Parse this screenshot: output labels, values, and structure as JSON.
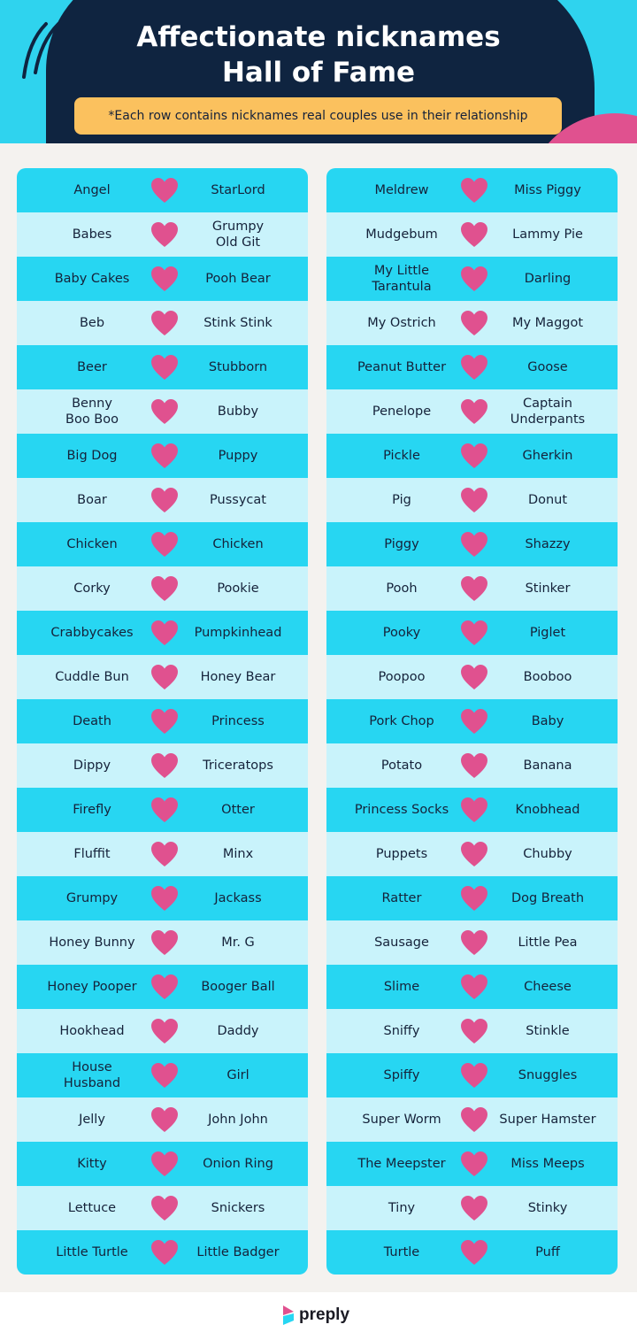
{
  "header": {
    "title_line1": "Affectionate nicknames",
    "title_line2": "Hall of Fame",
    "note": "*Each row contains nicknames real couples use in their relationship"
  },
  "colors": {
    "cyan": "#27d6f2",
    "light_cyan": "#c9f3fb",
    "navy": "#0f2440",
    "pink": "#e0518f",
    "yellow": "#fbc15e"
  },
  "icons": {
    "row_separator": "heart-icon"
  },
  "left_column": [
    [
      "Angel",
      "StarLord"
    ],
    [
      "Babes",
      "Grumpy\nOld Git"
    ],
    [
      "Baby Cakes",
      "Pooh Bear"
    ],
    [
      "Beb",
      "Stink Stink"
    ],
    [
      "Beer",
      "Stubborn"
    ],
    [
      "Benny\nBoo Boo",
      "Bubby"
    ],
    [
      "Big Dog",
      "Puppy"
    ],
    [
      "Boar",
      "Pussycat"
    ],
    [
      "Chicken",
      "Chicken"
    ],
    [
      "Corky",
      "Pookie"
    ],
    [
      "Crabbycakes",
      "Pumpkinhead"
    ],
    [
      "Cuddle Bun",
      "Honey Bear"
    ],
    [
      "Death",
      "Princess"
    ],
    [
      "Dippy",
      "Triceratops"
    ],
    [
      "Firefly",
      "Otter"
    ],
    [
      "Fluffit",
      "Minx"
    ],
    [
      "Grumpy",
      "Jackass"
    ],
    [
      "Honey Bunny",
      "Mr. G"
    ],
    [
      "Honey Pooper",
      "Booger Ball"
    ],
    [
      "Hookhead",
      "Daddy"
    ],
    [
      "House\nHusband",
      "Girl"
    ],
    [
      "Jelly",
      "John John"
    ],
    [
      "Kitty",
      "Onion Ring"
    ],
    [
      "Lettuce",
      "Snickers"
    ],
    [
      "Little Turtle",
      "Little Badger"
    ]
  ],
  "right_column": [
    [
      "Meldrew",
      "Miss Piggy"
    ],
    [
      "Mudgebum",
      "Lammy Pie"
    ],
    [
      "My Little\nTarantula",
      "Darling"
    ],
    [
      "My Ostrich",
      "My Maggot"
    ],
    [
      "Peanut Butter",
      "Goose"
    ],
    [
      "Penelope",
      "Captain\nUnderpants"
    ],
    [
      "Pickle",
      "Gherkin"
    ],
    [
      "Pig",
      "Donut"
    ],
    [
      "Piggy",
      "Shazzy"
    ],
    [
      "Pooh",
      "Stinker"
    ],
    [
      "Pooky",
      "Piglet"
    ],
    [
      "Poopoo",
      "Booboo"
    ],
    [
      "Pork Chop",
      "Baby"
    ],
    [
      "Potato",
      "Banana"
    ],
    [
      "Princess Socks",
      "Knobhead"
    ],
    [
      "Puppets",
      "Chubby"
    ],
    [
      "Ratter",
      "Dog Breath"
    ],
    [
      "Sausage",
      "Little Pea"
    ],
    [
      "Slime",
      "Cheese"
    ],
    [
      "Sniffy",
      "Stinkle"
    ],
    [
      "Spiffy",
      "Snuggles"
    ],
    [
      "Super Worm",
      "Super Hamster"
    ],
    [
      "The Meepster",
      "Miss Meeps"
    ],
    [
      "Tiny",
      "Stinky"
    ],
    [
      "Turtle",
      "Puff"
    ]
  ],
  "footer": {
    "brand": "preply"
  }
}
